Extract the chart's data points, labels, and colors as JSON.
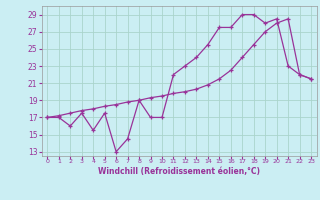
{
  "xlabel": "Windchill (Refroidissement éolien,°C)",
  "bg_color": "#cbeef3",
  "grid_color": "#aad4cc",
  "line_color": "#993399",
  "xlim": [
    -0.5,
    23.5
  ],
  "ylim": [
    12.5,
    30
  ],
  "yticks": [
    13,
    15,
    17,
    19,
    21,
    23,
    25,
    27,
    29
  ],
  "xticks": [
    0,
    1,
    2,
    3,
    4,
    5,
    6,
    7,
    8,
    9,
    10,
    11,
    12,
    13,
    14,
    15,
    16,
    17,
    18,
    19,
    20,
    21,
    22,
    23
  ],
  "line1_x": [
    0,
    1,
    2,
    3,
    4,
    5,
    6,
    7,
    8,
    9,
    10,
    11,
    12,
    13,
    14,
    15,
    16,
    17,
    18,
    19,
    20,
    21,
    22,
    23
  ],
  "line1_y": [
    17,
    17,
    16,
    17.5,
    15.5,
    17.5,
    13,
    14.5,
    19,
    17,
    17,
    22,
    23,
    24,
    25.5,
    27.5,
    27.5,
    29,
    29,
    28,
    28.5,
    23,
    22,
    21.5
  ],
  "line2_x": [
    0,
    1,
    2,
    3,
    4,
    5,
    6,
    7,
    8,
    9,
    10,
    11,
    12,
    13,
    14,
    15,
    16,
    17,
    18,
    19,
    20,
    21,
    22,
    23
  ],
  "line2_y": [
    17,
    17.2,
    17.5,
    17.8,
    18.0,
    18.3,
    18.5,
    18.8,
    19.0,
    19.3,
    19.5,
    19.8,
    20.0,
    20.3,
    20.8,
    21.5,
    22.5,
    24.0,
    25.5,
    27.0,
    28.0,
    28.5,
    22.0,
    21.5
  ]
}
